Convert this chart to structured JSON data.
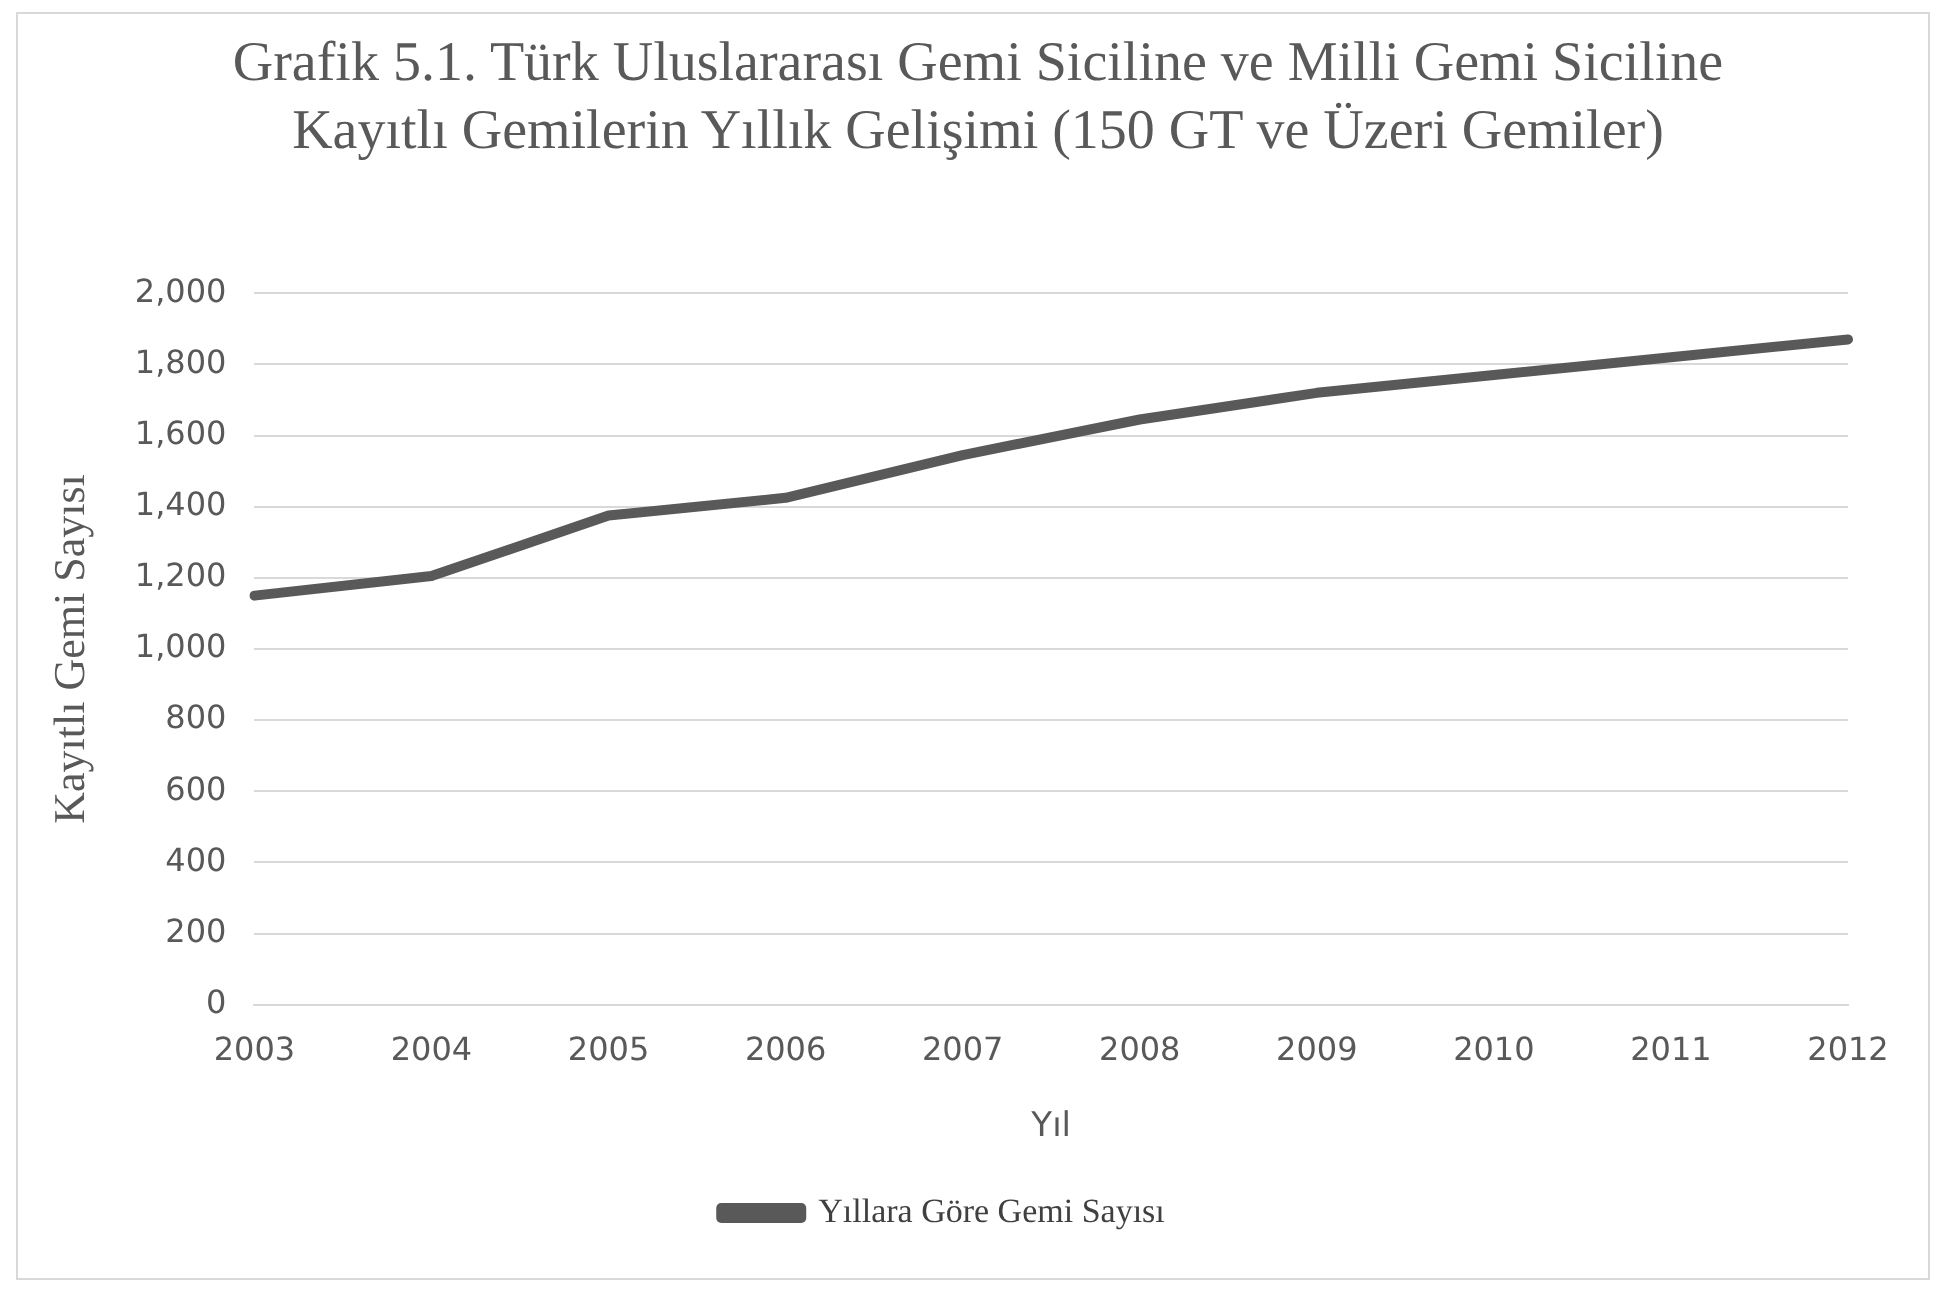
{
  "chart_data": {
    "type": "line",
    "title": "Grafik 5.1. Türk Uluslararası Gemi Siciline ve Milli Gemi Siciline Kayıtlı Gemilerin Yıllık Gelişimi (150 GT ve Üzeri Gemiler)",
    "xlabel": "Yıl",
    "ylabel": "Kayıtlı Gemi Sayısı",
    "categories": [
      "2003",
      "2004",
      "2005",
      "2006",
      "2007",
      "2008",
      "2009",
      "2010",
      "2011",
      "2012"
    ],
    "series": [
      {
        "name": "Yıllara Göre Gemi Sayısı",
        "color": "#595959",
        "values": [
          1150,
          1205,
          1375,
          1425,
          1545,
          1645,
          1720,
          1770,
          1820,
          1870
        ]
      }
    ],
    "ylim": [
      0,
      2000
    ],
    "yticks": [
      {
        "value": 0,
        "label": "0"
      },
      {
        "value": 200,
        "label": "200"
      },
      {
        "value": 400,
        "label": "400"
      },
      {
        "value": 600,
        "label": "600"
      },
      {
        "value": 800,
        "label": "800"
      },
      {
        "value": 1000,
        "label": "1,000"
      },
      {
        "value": 1200,
        "label": "1,200"
      },
      {
        "value": 1400,
        "label": "1,400"
      },
      {
        "value": 1600,
        "label": "1,600"
      },
      {
        "value": 1800,
        "label": "1,800"
      },
      {
        "value": 2000,
        "label": "2,000"
      }
    ],
    "grid": "y",
    "legend": "bottom",
    "marker": "none",
    "line_style": "solid"
  }
}
